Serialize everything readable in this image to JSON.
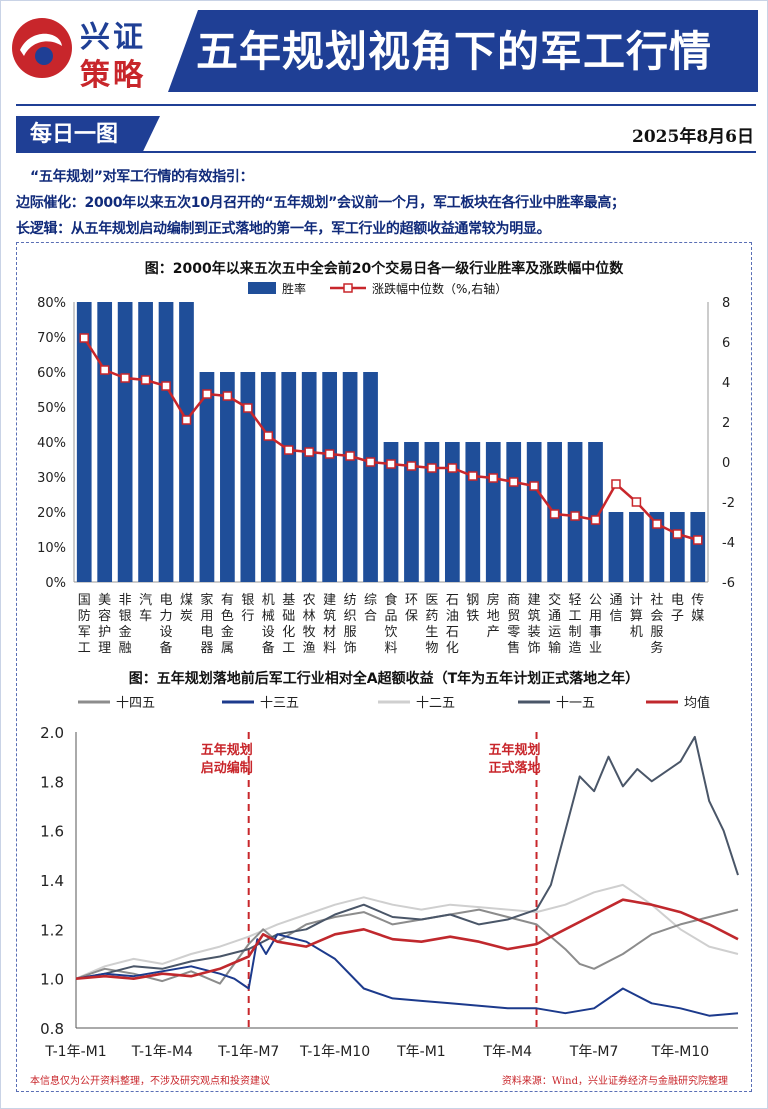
{
  "header": {
    "brand_line1": "兴证",
    "brand_line2": "策略",
    "title": "五年规划视角下的军工行情"
  },
  "section": {
    "label": "每日一图",
    "date": "2025年8月6日"
  },
  "intro": {
    "line1": "“五年规划”对军工行情的有效指引：",
    "line2": "边际催化：2000年以来五次10月召开的“五年规划”会议前一个月，军工板块在各行业中胜率最高；",
    "line3": "长逻辑：从五年规划启动编制到正式落地的第一年，军工行业的超额收益通常较为明显。"
  },
  "colors": {
    "navy": "#1f3f95",
    "bar": "#1f4e99",
    "red": "#c8262b",
    "s14": "#8c8c8c",
    "s13": "#1c3a8c",
    "s12": "#cfcfcf",
    "s11": "#4a5668",
    "mean": "#c0282d"
  },
  "chart_data": [
    {
      "type": "bar",
      "title": "图：2000年以来五次五中全会前20个交易日各一级行业胜率及涨跌幅中位数",
      "legend": {
        "bar": "胜率",
        "line": "涨跌幅中位数（%,右轴）"
      },
      "y_left": {
        "min": 0,
        "max": 80,
        "ticks": [
          "0%",
          "10%",
          "20%",
          "30%",
          "40%",
          "50%",
          "60%",
          "70%",
          "80%"
        ]
      },
      "y_right": {
        "min": -6,
        "max": 8,
        "ticks": [
          "-6",
          "-4",
          "-2",
          "0",
          "2",
          "4",
          "6",
          "8"
        ]
      },
      "categories": [
        "国防军工",
        "美容护理",
        "非银金融",
        "汽车",
        "电力设备",
        "煤炭",
        "家用电器",
        "有色金属",
        "银行",
        "机械设备",
        "基础化工",
        "农林牧渔",
        "建筑材料",
        "纺织服饰",
        "综合",
        "食品饮料",
        "环保",
        "医药生物",
        "石油石化",
        "钢铁",
        "房地产",
        "商贸零售",
        "建筑装饰",
        "交通运输",
        "轻工制造",
        "公用事业",
        "通信",
        "计算机",
        "社会服务",
        "电子",
        "传媒"
      ],
      "win_rate": [
        80,
        80,
        80,
        80,
        80,
        80,
        60,
        60,
        60,
        60,
        60,
        60,
        60,
        60,
        60,
        40,
        40,
        40,
        40,
        40,
        40,
        40,
        40,
        40,
        40,
        40,
        20,
        20,
        20,
        20,
        20
      ],
      "median_change": [
        6.2,
        4.6,
        4.2,
        4.1,
        3.8,
        2.1,
        3.4,
        3.3,
        2.7,
        1.3,
        0.6,
        0.5,
        0.4,
        0.3,
        0.0,
        -0.1,
        -0.2,
        -0.3,
        -0.3,
        -0.7,
        -0.8,
        -1.0,
        -1.2,
        -2.6,
        -2.7,
        -2.9,
        -1.1,
        -2.0,
        -3.1,
        -3.6,
        -3.9
      ]
    },
    {
      "type": "line",
      "title": "图：五年规划落地前后军工行业相对全A超额收益（T年为五年计划正式落地之年）",
      "legend": [
        "十四五",
        "十三五",
        "十二五",
        "十一五",
        "均值"
      ],
      "y": {
        "min": 0.8,
        "max": 2.0,
        "ticks": [
          "0.8",
          "1.0",
          "1.2",
          "1.4",
          "1.6",
          "1.8",
          "2.0"
        ]
      },
      "x_ticks": [
        "T-1年-M1",
        "T-1年-M4",
        "T-1年-M7",
        "T-1年-M10",
        "T年-M1",
        "T年-M4",
        "T年-M7",
        "T年-M10"
      ],
      "annotations": [
        {
          "label_line1": "五年规划",
          "label_line2": "启动编制",
          "at_month": 7
        },
        {
          "label_line1": "五年规划",
          "label_line2": "正式落地",
          "at_month": 17
        }
      ],
      "x_range_months": [
        1,
        24
      ],
      "series": [
        {
          "name": "十四五",
          "key": "s14",
          "points": [
            [
              1,
              1.0
            ],
            [
              2,
              1.04
            ],
            [
              3,
              1.02
            ],
            [
              4,
              0.99
            ],
            [
              5,
              1.03
            ],
            [
              6,
              0.98
            ],
            [
              6.5,
              1.06
            ],
            [
              7,
              1.14
            ],
            [
              7.5,
              1.2
            ],
            [
              8,
              1.15
            ],
            [
              9,
              1.22
            ],
            [
              10,
              1.25
            ],
            [
              11,
              1.27
            ],
            [
              12,
              1.22
            ],
            [
              13,
              1.24
            ],
            [
              14,
              1.26
            ],
            [
              15,
              1.28
            ],
            [
              16,
              1.25
            ],
            [
              17,
              1.22
            ],
            [
              18,
              1.12
            ],
            [
              18.5,
              1.06
            ],
            [
              19,
              1.04
            ],
            [
              20,
              1.1
            ],
            [
              21,
              1.18
            ],
            [
              22,
              1.22
            ],
            [
              23,
              1.25
            ],
            [
              24,
              1.28
            ]
          ]
        },
        {
          "name": "十三五",
          "key": "s13",
          "points": [
            [
              1,
              1.0
            ],
            [
              2,
              1.02
            ],
            [
              3,
              1.01
            ],
            [
              4,
              1.03
            ],
            [
              5,
              1.05
            ],
            [
              6,
              1.02
            ],
            [
              6.5,
              1.0
            ],
            [
              7,
              0.96
            ],
            [
              7.3,
              1.16
            ],
            [
              7.6,
              1.1
            ],
            [
              8,
              1.18
            ],
            [
              9,
              1.15
            ],
            [
              10,
              1.08
            ],
            [
              11,
              0.96
            ],
            [
              12,
              0.92
            ],
            [
              13,
              0.91
            ],
            [
              14,
              0.9
            ],
            [
              15,
              0.89
            ],
            [
              16,
              0.88
            ],
            [
              17,
              0.88
            ],
            [
              18,
              0.86
            ],
            [
              19,
              0.88
            ],
            [
              20,
              0.96
            ],
            [
              21,
              0.9
            ],
            [
              22,
              0.88
            ],
            [
              23,
              0.85
            ],
            [
              24,
              0.86
            ]
          ]
        },
        {
          "name": "十二五",
          "key": "s12",
          "points": [
            [
              1,
              1.0
            ],
            [
              2,
              1.05
            ],
            [
              3,
              1.08
            ],
            [
              4,
              1.06
            ],
            [
              5,
              1.1
            ],
            [
              6,
              1.13
            ],
            [
              7,
              1.17
            ],
            [
              8,
              1.22
            ],
            [
              9,
              1.26
            ],
            [
              10,
              1.3
            ],
            [
              11,
              1.33
            ],
            [
              12,
              1.3
            ],
            [
              13,
              1.28
            ],
            [
              14,
              1.3
            ],
            [
              15,
              1.29
            ],
            [
              16,
              1.28
            ],
            [
              17,
              1.27
            ],
            [
              18,
              1.3
            ],
            [
              19,
              1.35
            ],
            [
              20,
              1.38
            ],
            [
              21,
              1.3
            ],
            [
              22,
              1.2
            ],
            [
              23,
              1.13
            ],
            [
              24,
              1.1
            ]
          ]
        },
        {
          "name": "十一五",
          "key": "s11",
          "points": [
            [
              1,
              1.0
            ],
            [
              2,
              1.02
            ],
            [
              3,
              1.05
            ],
            [
              4,
              1.04
            ],
            [
              5,
              1.07
            ],
            [
              6,
              1.09
            ],
            [
              7,
              1.12
            ],
            [
              8,
              1.18
            ],
            [
              9,
              1.2
            ],
            [
              10,
              1.26
            ],
            [
              11,
              1.3
            ],
            [
              12,
              1.25
            ],
            [
              13,
              1.24
            ],
            [
              14,
              1.26
            ],
            [
              15,
              1.22
            ],
            [
              16,
              1.24
            ],
            [
              17,
              1.28
            ],
            [
              17.5,
              1.38
            ],
            [
              18,
              1.6
            ],
            [
              18.5,
              1.82
            ],
            [
              19,
              1.76
            ],
            [
              19.5,
              1.9
            ],
            [
              20,
              1.78
            ],
            [
              20.5,
              1.85
            ],
            [
              21,
              1.8
            ],
            [
              22,
              1.88
            ],
            [
              22.5,
              1.98
            ],
            [
              23,
              1.72
            ],
            [
              23.5,
              1.6
            ],
            [
              24,
              1.42
            ]
          ]
        },
        {
          "name": "均值",
          "key": "mean",
          "points": [
            [
              1,
              1.0
            ],
            [
              2,
              1.01
            ],
            [
              3,
              1.0
            ],
            [
              4,
              1.02
            ],
            [
              5,
              1.01
            ],
            [
              6,
              1.04
            ],
            [
              7,
              1.09
            ],
            [
              7.5,
              1.18
            ],
            [
              8,
              1.15
            ],
            [
              9,
              1.13
            ],
            [
              10,
              1.18
            ],
            [
              11,
              1.2
            ],
            [
              12,
              1.16
            ],
            [
              13,
              1.15
            ],
            [
              14,
              1.17
            ],
            [
              15,
              1.15
            ],
            [
              16,
              1.12
            ],
            [
              17,
              1.14
            ],
            [
              18,
              1.2
            ],
            [
              19,
              1.26
            ],
            [
              20,
              1.32
            ],
            [
              21,
              1.3
            ],
            [
              22,
              1.27
            ],
            [
              23,
              1.22
            ],
            [
              24,
              1.16
            ]
          ]
        }
      ]
    }
  ],
  "footer": {
    "left": "本信息仅为公开资料整理，不涉及研究观点和投资建议",
    "right": "资料来源：Wind，兴业证券经济与金融研究院整理"
  }
}
